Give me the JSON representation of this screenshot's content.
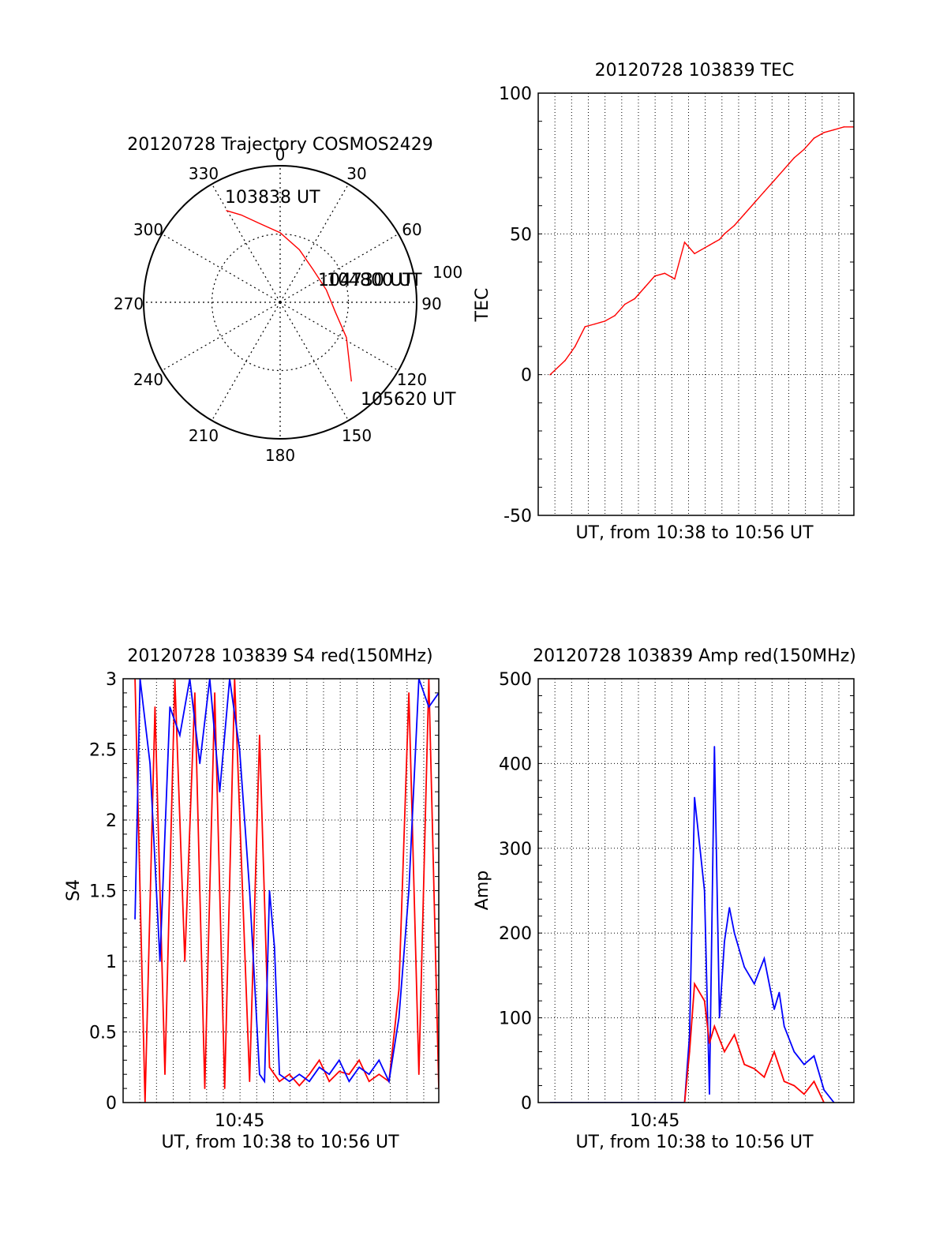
{
  "chart_data": [
    {
      "id": "trajectory",
      "type": "polar",
      "title": "20120728 Trajectory COSMOS2429",
      "azimuth_ticks": [
        "0",
        "30",
        "60",
        "90",
        "120",
        "150",
        "180",
        "210",
        "240",
        "270",
        "300",
        "330"
      ],
      "radial_label": "100",
      "series": [
        {
          "color": "#ff0000",
          "points": [
            {
              "az": 329.5,
              "r": 0.78
            },
            {
              "az": 336,
              "r": 0.7
            },
            {
              "az": 345,
              "r": 0.6
            },
            {
              "az": 360,
              "r": 0.51
            },
            {
              "az": 20,
              "r": 0.41
            },
            {
              "az": 45,
              "r": 0.34
            },
            {
              "az": 75,
              "r": 0.35
            },
            {
              "az": 100,
              "r": 0.41
            },
            {
              "az": 118,
              "r": 0.55
            },
            {
              "az": 138,
              "r": 0.78
            }
          ]
        }
      ],
      "annotations": [
        {
          "text": "103838 UT",
          "az": 329.5,
          "r": 0.78
        },
        {
          "text": "104730 UT",
          "az": 75,
          "r": 0.35
        },
        {
          "text": "104800 UT",
          "az": 75,
          "r": 0.35
        },
        {
          "text": "105620 UT",
          "az": 138,
          "r": 0.78
        }
      ]
    },
    {
      "id": "tec",
      "type": "line",
      "title": "20120728 103839 TEC",
      "xlabel": "UT, from 10:38 to 10:56 UT",
      "ylabel": "TEC",
      "xlim": [
        10.633,
        10.95
      ],
      "ylim": [
        -50,
        100
      ],
      "yticks": [
        -50,
        0,
        50,
        100
      ],
      "grid": true,
      "series": [
        {
          "color": "#ff0000",
          "x": [
            10.645,
            10.66,
            10.67,
            10.68,
            10.69,
            10.7,
            10.71,
            10.72,
            10.73,
            10.74,
            10.75,
            10.76,
            10.77,
            10.78,
            10.79,
            10.8,
            10.805,
            10.81,
            10.815,
            10.82,
            10.83,
            10.84,
            10.85,
            10.86,
            10.87,
            10.88,
            10.89,
            10.9,
            10.91,
            10.92,
            10.93,
            10.94,
            10.95
          ],
          "values": [
            0,
            5,
            10,
            17,
            18,
            19,
            21,
            25,
            27,
            31,
            35,
            36,
            34,
            47,
            43,
            45,
            46,
            47,
            48,
            50,
            53,
            57,
            61,
            65,
            69,
            73,
            77,
            80,
            84,
            86,
            87,
            88,
            88
          ]
        }
      ]
    },
    {
      "id": "s4",
      "type": "line",
      "title": "20120728 103839 S4 red(150MHz)",
      "xlabel": "UT, from 10:38 to 10:56 UT",
      "ylabel": "S4",
      "xlim": [
        10.633,
        10.95
      ],
      "ylim": [
        0,
        3
      ],
      "yticks": [
        0,
        0.5,
        1,
        1.5,
        2,
        2.5,
        3
      ],
      "xticks": [
        {
          "value": 10.75,
          "label": "10:45"
        }
      ],
      "grid": true,
      "series": [
        {
          "color": "#ff0000",
          "x": [
            10.645,
            10.655,
            10.665,
            10.675,
            10.685,
            10.695,
            10.705,
            10.715,
            10.725,
            10.735,
            10.745,
            10.76,
            10.77,
            10.78,
            10.79,
            10.8,
            10.81,
            10.82,
            10.83,
            10.84,
            10.85,
            10.86,
            10.87,
            10.88,
            10.89,
            10.9,
            10.91,
            10.92,
            10.93,
            10.94,
            10.95
          ],
          "values": [
            3,
            0,
            2.8,
            0.2,
            3,
            1.0,
            2.9,
            0.1,
            2.9,
            0.1,
            3,
            0.15,
            2.6,
            0.25,
            0.15,
            0.2,
            0.12,
            0.2,
            0.3,
            0.15,
            0.22,
            0.2,
            0.3,
            0.15,
            0.2,
            0.15,
            0.8,
            2.9,
            0.2,
            3,
            0.1
          ]
        },
        {
          "color": "#0000ff",
          "x": [
            10.645,
            10.65,
            10.66,
            10.67,
            10.68,
            10.69,
            10.7,
            10.71,
            10.72,
            10.73,
            10.74,
            10.75,
            10.76,
            10.77,
            10.775,
            10.78,
            10.785,
            10.79,
            10.8,
            10.81,
            10.82,
            10.83,
            10.84,
            10.85,
            10.86,
            10.87,
            10.88,
            10.89,
            10.9,
            10.91,
            10.92,
            10.93,
            10.94,
            10.95
          ],
          "values": [
            1.3,
            3,
            2.4,
            1.0,
            2.8,
            2.6,
            3,
            2.4,
            3,
            2.2,
            3,
            2.5,
            1.5,
            0.2,
            0.15,
            1.5,
            1.1,
            0.2,
            0.15,
            0.2,
            0.15,
            0.25,
            0.2,
            0.3,
            0.15,
            0.25,
            0.2,
            0.3,
            0.15,
            0.6,
            1.5,
            3,
            2.8,
            2.9
          ]
        }
      ]
    },
    {
      "id": "amp",
      "type": "line",
      "title": "20120728 103839 Amp red(150MHz)",
      "xlabel": "UT, from 10:38 to 10:56 UT",
      "ylabel": "Amp",
      "xlim": [
        10.633,
        10.95
      ],
      "ylim": [
        0,
        500
      ],
      "yticks": [
        0,
        100,
        200,
        300,
        400,
        500
      ],
      "xticks": [
        {
          "value": 10.75,
          "label": "10:45"
        }
      ],
      "grid": true,
      "series": [
        {
          "color": "#0000ff",
          "x": [
            10.645,
            10.7,
            10.75,
            10.78,
            10.785,
            10.79,
            10.8,
            10.805,
            10.81,
            10.815,
            10.82,
            10.825,
            10.83,
            10.84,
            10.85,
            10.86,
            10.87,
            10.875,
            10.88,
            10.89,
            10.9,
            10.91,
            10.92,
            10.93
          ],
          "values": [
            0,
            0,
            0,
            0,
            80,
            360,
            250,
            10,
            420,
            100,
            190,
            230,
            200,
            160,
            140,
            170,
            110,
            130,
            90,
            60,
            45,
            55,
            15,
            0
          ]
        },
        {
          "color": "#ff0000",
          "x": [
            10.78,
            10.785,
            10.79,
            10.8,
            10.805,
            10.81,
            10.82,
            10.83,
            10.84,
            10.85,
            10.86,
            10.87,
            10.88,
            10.89,
            10.9,
            10.91,
            10.92
          ],
          "values": [
            0,
            60,
            140,
            120,
            70,
            90,
            60,
            80,
            45,
            40,
            30,
            60,
            25,
            20,
            10,
            25,
            0
          ]
        }
      ]
    }
  ]
}
